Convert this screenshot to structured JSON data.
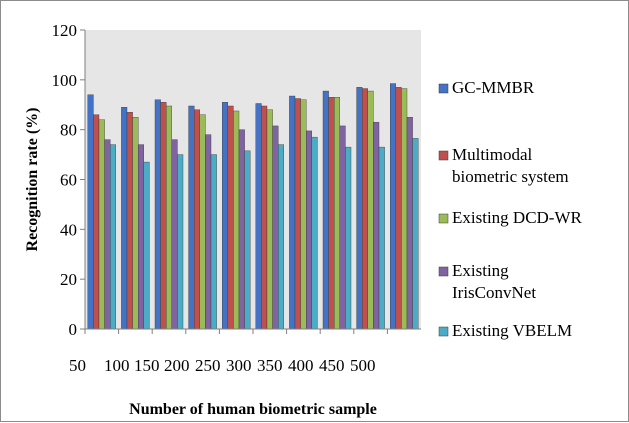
{
  "chart_data": {
    "type": "bar",
    "title": "",
    "xlabel": "Number of human biometric sample",
    "ylabel": "Recognition rate (%)",
    "categories": [
      "50",
      "100",
      "150",
      "200",
      "250",
      "300",
      "350",
      "400",
      "450",
      "500"
    ],
    "ylim": [
      0,
      120
    ],
    "yticks": [
      0,
      20,
      40,
      60,
      80,
      100,
      120
    ],
    "grid": false,
    "legend_position": "right",
    "series": [
      {
        "name": "GC-MMBR",
        "legend_lines": [
          "GC-MMBR"
        ],
        "color": "#4472c4",
        "values": [
          94,
          89,
          92,
          89.5,
          91,
          90.5,
          93.5,
          95.5,
          97,
          98.5
        ]
      },
      {
        "name": "Multimodal biometric system",
        "legend_lines": [
          "Multimodal",
          "biometric system"
        ],
        "color": "#c0504d",
        "values": [
          86,
          87,
          91,
          88,
          89.5,
          89.5,
          92.5,
          93,
          96.5,
          97
        ]
      },
      {
        "name": "Existing DCD-WR",
        "legend_lines": [
          "Existing DCD-WR"
        ],
        "color": "#9bbb59",
        "values": [
          84,
          85,
          89.5,
          86,
          87.5,
          88,
          92,
          93,
          95.5,
          96.5
        ]
      },
      {
        "name": "Existing IrisConvNet",
        "legend_lines": [
          "Existing",
          "IrisConvNet"
        ],
        "color": "#8064a2",
        "values": [
          76,
          74,
          76,
          78,
          80,
          81.5,
          79.5,
          81.5,
          83,
          85
        ]
      },
      {
        "name": "Existing VBELM",
        "legend_lines": [
          "Existing VBELM"
        ],
        "color": "#4bacc6",
        "values": [
          74,
          67,
          70,
          70,
          71.5,
          74,
          77,
          73,
          73,
          76.5
        ]
      }
    ]
  }
}
